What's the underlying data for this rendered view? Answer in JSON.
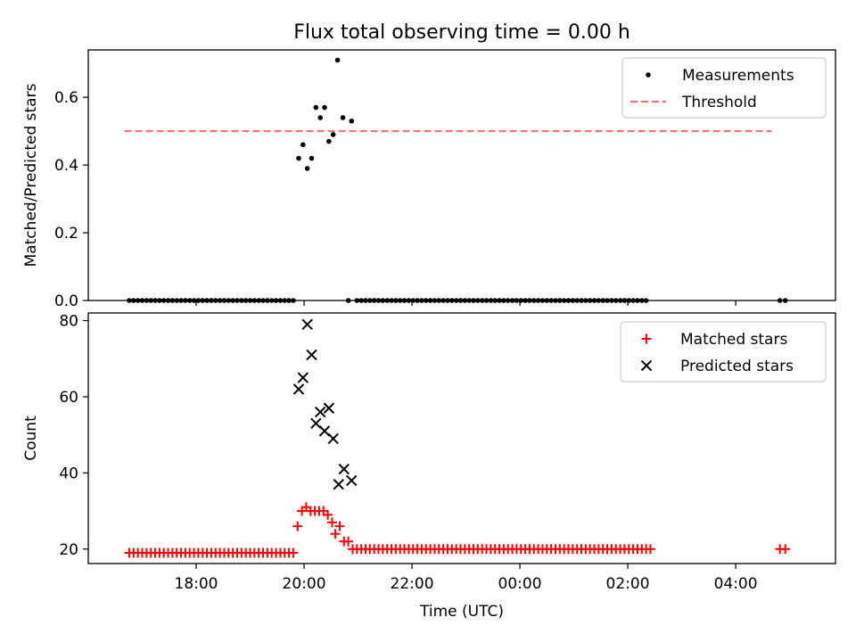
{
  "figure": {
    "title": "Flux total observing time = 0.00 h"
  },
  "chart_data": [
    {
      "type": "scatter",
      "panel": "top",
      "title": "Flux total observing time = 0.00 h",
      "xlabel": "",
      "ylabel": "Matched/Predicted stars",
      "x_unit": "hours since 16:00 UTC (axis shows HH:MM)",
      "xlim": [
        0.0,
        13.85
      ],
      "ylim": [
        0.0,
        0.74
      ],
      "yticks": [
        0.0,
        0.2,
        0.4,
        0.6
      ],
      "ytick_labels": [
        "0.0",
        "0.2",
        "0.4",
        "0.6"
      ],
      "xticks": [
        2,
        4,
        6,
        8,
        10,
        12
      ],
      "xtick_labels": [
        "",
        "",
        "",
        "",
        "",
        ""
      ],
      "grid": false,
      "legend_position": "top-right",
      "legend": [
        {
          "label": "Measurements",
          "marker": "dot",
          "color": "#000000"
        },
        {
          "label": "Threshold",
          "marker": "dashed-line",
          "color": "#ff6b6b"
        }
      ],
      "threshold": {
        "y": 0.5,
        "x_range": [
          0.67,
          12.67
        ],
        "color": "#ff6b6b"
      },
      "series": [
        {
          "name": "Measurements",
          "color": "#000000",
          "points": [
            [
              0.76,
              0
            ],
            [
              0.84,
              0
            ],
            [
              0.92,
              0
            ],
            [
              1.0,
              0
            ],
            [
              1.08,
              0
            ],
            [
              1.16,
              0
            ],
            [
              1.24,
              0
            ],
            [
              1.32,
              0
            ],
            [
              1.4,
              0
            ],
            [
              1.48,
              0
            ],
            [
              1.56,
              0
            ],
            [
              1.64,
              0
            ],
            [
              1.72,
              0
            ],
            [
              1.8,
              0
            ],
            [
              1.88,
              0
            ],
            [
              1.96,
              0
            ],
            [
              2.04,
              0
            ],
            [
              2.12,
              0
            ],
            [
              2.2,
              0
            ],
            [
              2.28,
              0
            ],
            [
              2.36,
              0
            ],
            [
              2.44,
              0
            ],
            [
              2.52,
              0
            ],
            [
              2.6,
              0
            ],
            [
              2.68,
              0
            ],
            [
              2.76,
              0
            ],
            [
              2.84,
              0
            ],
            [
              2.92,
              0
            ],
            [
              3.0,
              0
            ],
            [
              3.08,
              0
            ],
            [
              3.16,
              0
            ],
            [
              3.24,
              0
            ],
            [
              3.32,
              0
            ],
            [
              3.4,
              0
            ],
            [
              3.48,
              0
            ],
            [
              3.56,
              0
            ],
            [
              3.64,
              0
            ],
            [
              3.72,
              0
            ],
            [
              3.8,
              0
            ],
            [
              3.9,
              0.42
            ],
            [
              3.98,
              0.46
            ],
            [
              4.06,
              0.39
            ],
            [
              4.14,
              0.42
            ],
            [
              4.22,
              0.57
            ],
            [
              4.3,
              0.54
            ],
            [
              4.38,
              0.57
            ],
            [
              4.46,
              0.47
            ],
            [
              4.54,
              0.49
            ],
            [
              4.62,
              0.71
            ],
            [
              4.72,
              0.54
            ],
            [
              4.88,
              0.53
            ],
            [
              4.82,
              0
            ],
            [
              4.98,
              0
            ],
            [
              5.06,
              0
            ],
            [
              5.14,
              0
            ],
            [
              5.22,
              0
            ],
            [
              5.3,
              0
            ],
            [
              5.38,
              0
            ],
            [
              5.46,
              0
            ],
            [
              5.54,
              0
            ],
            [
              5.62,
              0
            ],
            [
              5.7,
              0
            ],
            [
              5.78,
              0
            ],
            [
              5.86,
              0
            ],
            [
              5.94,
              0
            ],
            [
              6.02,
              0
            ],
            [
              6.1,
              0
            ],
            [
              6.18,
              0
            ],
            [
              6.26,
              0
            ],
            [
              6.34,
              0
            ],
            [
              6.42,
              0
            ],
            [
              6.5,
              0
            ],
            [
              6.58,
              0
            ],
            [
              6.66,
              0
            ],
            [
              6.74,
              0
            ],
            [
              6.82,
              0
            ],
            [
              6.9,
              0
            ],
            [
              6.98,
              0
            ],
            [
              7.06,
              0
            ],
            [
              7.14,
              0
            ],
            [
              7.22,
              0
            ],
            [
              7.3,
              0
            ],
            [
              7.38,
              0
            ],
            [
              7.46,
              0
            ],
            [
              7.54,
              0
            ],
            [
              7.62,
              0
            ],
            [
              7.7,
              0
            ],
            [
              7.78,
              0
            ],
            [
              7.86,
              0
            ],
            [
              7.94,
              0
            ],
            [
              8.02,
              0
            ],
            [
              8.1,
              0
            ],
            [
              8.18,
              0
            ],
            [
              8.26,
              0
            ],
            [
              8.34,
              0
            ],
            [
              8.42,
              0
            ],
            [
              8.5,
              0
            ],
            [
              8.58,
              0
            ],
            [
              8.66,
              0
            ],
            [
              8.74,
              0
            ],
            [
              8.82,
              0
            ],
            [
              8.9,
              0
            ],
            [
              8.98,
              0
            ],
            [
              9.06,
              0
            ],
            [
              9.14,
              0
            ],
            [
              9.22,
              0
            ],
            [
              9.3,
              0
            ],
            [
              9.38,
              0
            ],
            [
              9.46,
              0
            ],
            [
              9.54,
              0
            ],
            [
              9.62,
              0
            ],
            [
              9.7,
              0
            ],
            [
              9.78,
              0
            ],
            [
              9.86,
              0
            ],
            [
              9.94,
              0
            ],
            [
              10.02,
              0
            ],
            [
              10.1,
              0
            ],
            [
              10.18,
              0
            ],
            [
              10.26,
              0
            ],
            [
              10.34,
              0
            ],
            [
              12.82,
              0
            ],
            [
              12.92,
              0
            ]
          ]
        }
      ]
    },
    {
      "type": "scatter",
      "panel": "bottom",
      "title": "",
      "xlabel": "Time (UTC)",
      "ylabel": "Count",
      "x_unit": "hours since 16:00 UTC (axis shows HH:MM)",
      "xlim": [
        0.0,
        13.85
      ],
      "ylim": [
        16.2,
        82.0
      ],
      "yticks": [
        20,
        40,
        60,
        80
      ],
      "ytick_labels": [
        "20",
        "40",
        "60",
        "80"
      ],
      "xticks": [
        2,
        4,
        6,
        8,
        10,
        12
      ],
      "xtick_labels": [
        "18:00",
        "20:00",
        "22:00",
        "00:00",
        "02:00",
        "04:00"
      ],
      "grid": false,
      "legend_position": "top-right",
      "legend": [
        {
          "label": "Matched stars",
          "marker": "plus",
          "color": "#ff0000"
        },
        {
          "label": "Predicted stars",
          "marker": "cross",
          "color": "#000000"
        }
      ],
      "series": [
        {
          "name": "Matched stars",
          "marker": "plus",
          "color": "#ff0000",
          "points": [
            [
              0.76,
              19
            ],
            [
              0.84,
              19
            ],
            [
              0.92,
              19
            ],
            [
              1.0,
              19
            ],
            [
              1.08,
              19
            ],
            [
              1.16,
              19
            ],
            [
              1.24,
              19
            ],
            [
              1.32,
              19
            ],
            [
              1.4,
              19
            ],
            [
              1.48,
              19
            ],
            [
              1.56,
              19
            ],
            [
              1.64,
              19
            ],
            [
              1.72,
              19
            ],
            [
              1.8,
              19
            ],
            [
              1.88,
              19
            ],
            [
              1.96,
              19
            ],
            [
              2.04,
              19
            ],
            [
              2.12,
              19
            ],
            [
              2.2,
              19
            ],
            [
              2.28,
              19
            ],
            [
              2.36,
              19
            ],
            [
              2.44,
              19
            ],
            [
              2.52,
              19
            ],
            [
              2.6,
              19
            ],
            [
              2.68,
              19
            ],
            [
              2.76,
              19
            ],
            [
              2.84,
              19
            ],
            [
              2.92,
              19
            ],
            [
              3.0,
              19
            ],
            [
              3.08,
              19
            ],
            [
              3.16,
              19
            ],
            [
              3.24,
              19
            ],
            [
              3.32,
              19
            ],
            [
              3.4,
              19
            ],
            [
              3.48,
              19
            ],
            [
              3.56,
              19
            ],
            [
              3.64,
              19
            ],
            [
              3.72,
              19
            ],
            [
              3.8,
              19
            ],
            [
              3.88,
              26
            ],
            [
              3.96,
              30
            ],
            [
              4.04,
              31
            ],
            [
              4.12,
              30
            ],
            [
              4.2,
              30
            ],
            [
              4.28,
              30
            ],
            [
              4.36,
              30
            ],
            [
              4.44,
              29
            ],
            [
              4.52,
              27
            ],
            [
              4.58,
              24
            ],
            [
              4.66,
              26
            ],
            [
              4.74,
              22
            ],
            [
              4.82,
              22
            ],
            [
              4.9,
              20
            ],
            [
              4.98,
              20
            ],
            [
              5.06,
              20
            ],
            [
              5.14,
              20
            ],
            [
              5.22,
              20
            ],
            [
              5.3,
              20
            ],
            [
              5.38,
              20
            ],
            [
              5.46,
              20
            ],
            [
              5.54,
              20
            ],
            [
              5.62,
              20
            ],
            [
              5.7,
              20
            ],
            [
              5.78,
              20
            ],
            [
              5.86,
              20
            ],
            [
              5.94,
              20
            ],
            [
              6.02,
              20
            ],
            [
              6.1,
              20
            ],
            [
              6.18,
              20
            ],
            [
              6.26,
              20
            ],
            [
              6.34,
              20
            ],
            [
              6.42,
              20
            ],
            [
              6.5,
              20
            ],
            [
              6.58,
              20
            ],
            [
              6.66,
              20
            ],
            [
              6.74,
              20
            ],
            [
              6.82,
              20
            ],
            [
              6.9,
              20
            ],
            [
              6.98,
              20
            ],
            [
              7.06,
              20
            ],
            [
              7.14,
              20
            ],
            [
              7.22,
              20
            ],
            [
              7.3,
              20
            ],
            [
              7.38,
              20
            ],
            [
              7.46,
              20
            ],
            [
              7.54,
              20
            ],
            [
              7.62,
              20
            ],
            [
              7.7,
              20
            ],
            [
              7.78,
              20
            ],
            [
              7.86,
              20
            ],
            [
              7.94,
              20
            ],
            [
              8.02,
              20
            ],
            [
              8.1,
              20
            ],
            [
              8.18,
              20
            ],
            [
              8.26,
              20
            ],
            [
              8.34,
              20
            ],
            [
              8.42,
              20
            ],
            [
              8.5,
              20
            ],
            [
              8.58,
              20
            ],
            [
              8.66,
              20
            ],
            [
              8.74,
              20
            ],
            [
              8.82,
              20
            ],
            [
              8.9,
              20
            ],
            [
              8.98,
              20
            ],
            [
              9.06,
              20
            ],
            [
              9.14,
              20
            ],
            [
              9.22,
              20
            ],
            [
              9.3,
              20
            ],
            [
              9.38,
              20
            ],
            [
              9.46,
              20
            ],
            [
              9.54,
              20
            ],
            [
              9.62,
              20
            ],
            [
              9.7,
              20
            ],
            [
              9.78,
              20
            ],
            [
              9.86,
              20
            ],
            [
              9.94,
              20
            ],
            [
              10.02,
              20
            ],
            [
              10.1,
              20
            ],
            [
              10.18,
              20
            ],
            [
              10.26,
              20
            ],
            [
              10.34,
              20
            ],
            [
              10.42,
              20
            ],
            [
              12.82,
              20
            ],
            [
              12.92,
              20
            ]
          ]
        },
        {
          "name": "Predicted stars",
          "marker": "cross",
          "color": "#000000",
          "points": [
            [
              3.9,
              62
            ],
            [
              3.98,
              65
            ],
            [
              4.06,
              79
            ],
            [
              4.14,
              71
            ],
            [
              4.22,
              53
            ],
            [
              4.3,
              56
            ],
            [
              4.38,
              51
            ],
            [
              4.46,
              57
            ],
            [
              4.54,
              49
            ],
            [
              4.64,
              37
            ],
            [
              4.74,
              41
            ],
            [
              4.88,
              38
            ]
          ]
        }
      ]
    }
  ]
}
